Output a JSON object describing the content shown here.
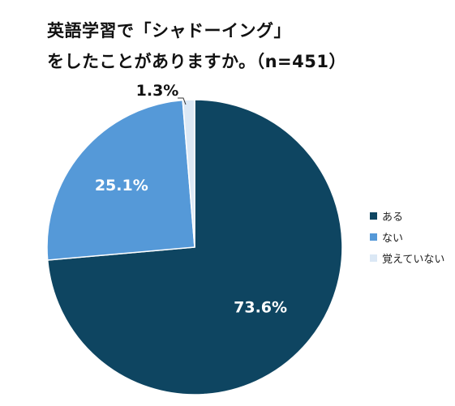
{
  "title": {
    "line1": "英語学習で「シャドーイング」",
    "line2": "をしたことがありますか。（n=451）"
  },
  "chart_data": {
    "type": "pie",
    "categories": [
      "ある",
      "ない",
      "覚えていない"
    ],
    "values": [
      73.6,
      25.1,
      1.3
    ],
    "labels": [
      "73.6%",
      "25.1%",
      "1.3%"
    ],
    "colors": [
      "#0e4561",
      "#5599d8",
      "#dbe8f5"
    ],
    "label_colors": [
      "#ffffff",
      "#ffffff",
      "#111111"
    ],
    "legend_position": "right"
  }
}
